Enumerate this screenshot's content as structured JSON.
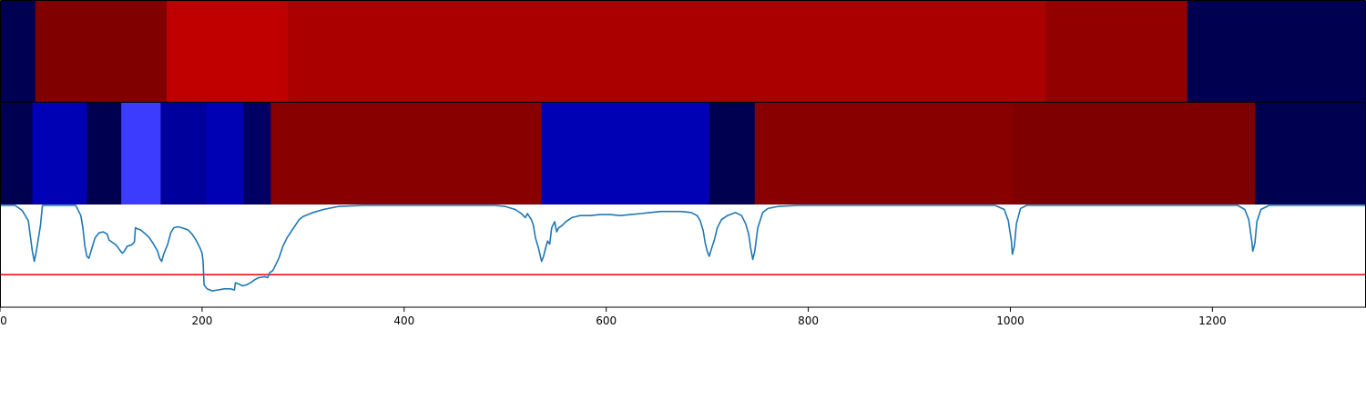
{
  "chart_data": {
    "type": "heatmap",
    "title": "",
    "xlabel": "",
    "ylabel": "",
    "xlim": [
      0,
      1352
    ],
    "grid": false,
    "legend": "none",
    "x_ticks": [
      "0",
      "200",
      "400",
      "600",
      "800",
      "1000",
      "1200"
    ],
    "x_tick_values": [
      0,
      200,
      400,
      600,
      800,
      1000,
      1200
    ],
    "tracks": [
      {
        "segments": [
          {
            "start": 0,
            "end": 35,
            "color": "#000050"
          },
          {
            "start": 35,
            "end": 165,
            "color": "#800000"
          },
          {
            "start": 165,
            "end": 285,
            "color": "#c00000"
          },
          {
            "start": 285,
            "end": 1035,
            "color": "#ab0000"
          },
          {
            "start": 1035,
            "end": 1175,
            "color": "#920000"
          },
          {
            "start": 1175,
            "end": 1352,
            "color": "#000050"
          }
        ]
      },
      {
        "segments": [
          {
            "start": 0,
            "end": 32,
            "color": "#000050"
          },
          {
            "start": 32,
            "end": 86,
            "color": "#0000b4"
          },
          {
            "start": 86,
            "end": 120,
            "color": "#000050"
          },
          {
            "start": 120,
            "end": 159,
            "color": "#3c3cff"
          },
          {
            "start": 159,
            "end": 204,
            "color": "#00009c"
          },
          {
            "start": 204,
            "end": 241,
            "color": "#0000b4"
          },
          {
            "start": 241,
            "end": 268,
            "color": "#000064"
          },
          {
            "start": 268,
            "end": 536,
            "color": "#880000"
          },
          {
            "start": 536,
            "end": 702,
            "color": "#0000b4"
          },
          {
            "start": 702,
            "end": 747,
            "color": "#000050"
          },
          {
            "start": 747,
            "end": 1003,
            "color": "#880000"
          },
          {
            "start": 1003,
            "end": 1242,
            "color": "#7e0000"
          },
          {
            "start": 1242,
            "end": 1352,
            "color": "#000050"
          }
        ]
      }
    ],
    "line": {
      "color": "#1f77b4",
      "ylim": [
        0,
        1
      ],
      "threshold": 0.32,
      "threshold_color": "#ee1111",
      "points": [
        [
          0,
          1.0
        ],
        [
          15,
          1.0
        ],
        [
          22,
          0.95
        ],
        [
          28,
          0.85
        ],
        [
          32,
          0.55
        ],
        [
          34,
          0.45
        ],
        [
          36,
          0.55
        ],
        [
          40,
          0.8
        ],
        [
          42,
          1.0
        ],
        [
          75,
          1.0
        ],
        [
          80,
          0.9
        ],
        [
          82,
          0.78
        ],
        [
          84,
          0.6
        ],
        [
          86,
          0.5
        ],
        [
          88,
          0.48
        ],
        [
          90,
          0.55
        ],
        [
          94,
          0.68
        ],
        [
          98,
          0.73
        ],
        [
          102,
          0.74
        ],
        [
          106,
          0.72
        ],
        [
          108,
          0.66
        ],
        [
          112,
          0.63
        ],
        [
          115,
          0.61
        ],
        [
          118,
          0.57
        ],
        [
          121,
          0.53
        ],
        [
          123,
          0.55
        ],
        [
          126,
          0.6
        ],
        [
          130,
          0.61
        ],
        [
          133,
          0.64
        ],
        [
          134,
          0.78
        ],
        [
          136,
          0.77
        ],
        [
          139,
          0.76
        ],
        [
          144,
          0.72
        ],
        [
          148,
          0.68
        ],
        [
          152,
          0.62
        ],
        [
          156,
          0.55
        ],
        [
          158,
          0.48
        ],
        [
          160,
          0.45
        ],
        [
          162,
          0.52
        ],
        [
          166,
          0.62
        ],
        [
          169,
          0.73
        ],
        [
          172,
          0.78
        ],
        [
          176,
          0.79
        ],
        [
          180,
          0.78
        ],
        [
          186,
          0.76
        ],
        [
          190,
          0.72
        ],
        [
          194,
          0.66
        ],
        [
          198,
          0.58
        ],
        [
          200,
          0.53
        ],
        [
          201,
          0.45
        ],
        [
          202,
          0.22
        ],
        [
          205,
          0.18
        ],
        [
          210,
          0.16
        ],
        [
          216,
          0.17
        ],
        [
          222,
          0.18
        ],
        [
          228,
          0.18
        ],
        [
          232,
          0.17
        ],
        [
          233,
          0.24
        ],
        [
          236,
          0.23
        ],
        [
          240,
          0.21
        ],
        [
          244,
          0.22
        ],
        [
          248,
          0.24
        ],
        [
          252,
          0.27
        ],
        [
          256,
          0.29
        ],
        [
          262,
          0.3
        ],
        [
          265,
          0.29
        ],
        [
          267,
          0.34
        ],
        [
          270,
          0.36
        ],
        [
          272,
          0.4
        ],
        [
          276,
          0.48
        ],
        [
          280,
          0.6
        ],
        [
          284,
          0.68
        ],
        [
          288,
          0.74
        ],
        [
          292,
          0.8
        ],
        [
          296,
          0.86
        ],
        [
          300,
          0.89
        ],
        [
          310,
          0.93
        ],
        [
          320,
          0.96
        ],
        [
          335,
          0.99
        ],
        [
          360,
          1.0
        ],
        [
          490,
          1.0
        ],
        [
          500,
          0.99
        ],
        [
          510,
          0.96
        ],
        [
          516,
          0.92
        ],
        [
          520,
          0.88
        ],
        [
          522,
          0.92
        ],
        [
          526,
          0.86
        ],
        [
          528,
          0.8
        ],
        [
          530,
          0.68
        ],
        [
          533,
          0.58
        ],
        [
          536,
          0.45
        ],
        [
          538,
          0.5
        ],
        [
          540,
          0.58
        ],
        [
          542,
          0.65
        ],
        [
          544,
          0.62
        ],
        [
          546,
          0.78
        ],
        [
          549,
          0.84
        ],
        [
          551,
          0.74
        ],
        [
          553,
          0.78
        ],
        [
          556,
          0.8
        ],
        [
          560,
          0.84
        ],
        [
          566,
          0.88
        ],
        [
          574,
          0.9
        ],
        [
          584,
          0.9
        ],
        [
          594,
          0.91
        ],
        [
          604,
          0.91
        ],
        [
          614,
          0.9
        ],
        [
          624,
          0.91
        ],
        [
          634,
          0.92
        ],
        [
          644,
          0.93
        ],
        [
          654,
          0.94
        ],
        [
          664,
          0.94
        ],
        [
          674,
          0.94
        ],
        [
          684,
          0.93
        ],
        [
          690,
          0.9
        ],
        [
          693,
          0.85
        ],
        [
          696,
          0.75
        ],
        [
          698,
          0.63
        ],
        [
          700,
          0.55
        ],
        [
          702,
          0.5
        ],
        [
          704,
          0.57
        ],
        [
          707,
          0.66
        ],
        [
          710,
          0.78
        ],
        [
          714,
          0.86
        ],
        [
          720,
          0.9
        ],
        [
          728,
          0.93
        ],
        [
          734,
          0.9
        ],
        [
          738,
          0.82
        ],
        [
          741,
          0.72
        ],
        [
          743,
          0.58
        ],
        [
          745,
          0.47
        ],
        [
          747,
          0.55
        ],
        [
          750,
          0.78
        ],
        [
          755,
          0.93
        ],
        [
          760,
          0.97
        ],
        [
          770,
          0.99
        ],
        [
          790,
          1.0
        ],
        [
          985,
          1.0
        ],
        [
          994,
          0.96
        ],
        [
          998,
          0.85
        ],
        [
          1001,
          0.65
        ],
        [
          1002,
          0.52
        ],
        [
          1004,
          0.6
        ],
        [
          1006,
          0.82
        ],
        [
          1010,
          0.97
        ],
        [
          1016,
          1.0
        ],
        [
          1225,
          1.0
        ],
        [
          1232,
          0.96
        ],
        [
          1236,
          0.86
        ],
        [
          1239,
          0.65
        ],
        [
          1240,
          0.55
        ],
        [
          1242,
          0.63
        ],
        [
          1244,
          0.84
        ],
        [
          1248,
          0.96
        ],
        [
          1256,
          1.0
        ],
        [
          1352,
          1.0
        ]
      ]
    }
  }
}
